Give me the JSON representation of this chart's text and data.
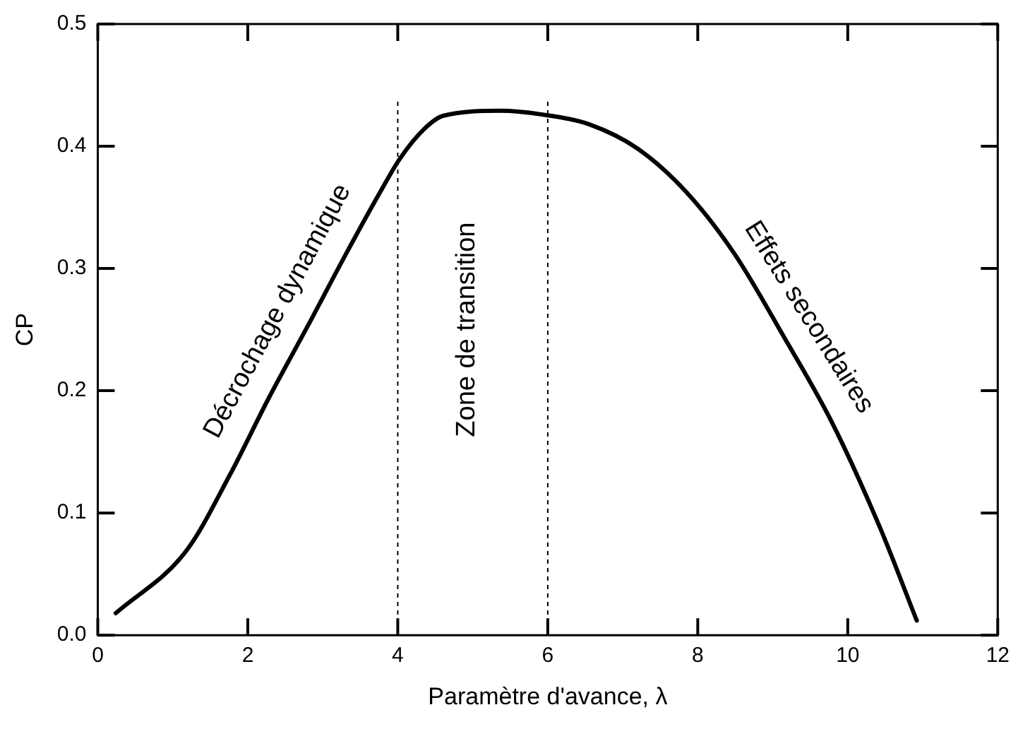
{
  "chart_data": {
    "type": "line",
    "xlabel": "Paramètre d'avance, λ",
    "ylabel": "CP",
    "series": [
      {
        "color": "#000000",
        "x": [
          0.24,
          1.18,
          1.76,
          2.28,
          2.8,
          3.31,
          3.77,
          4.03,
          4.35,
          4.61,
          5.38,
          6.03,
          6.55,
          7.2,
          7.84,
          8.49,
          9.14,
          9.79,
          10.43,
          10.92
        ],
        "values": [
          0.018,
          0.069,
          0.131,
          0.194,
          0.253,
          0.312,
          0.363,
          0.39,
          0.414,
          0.425,
          0.429,
          0.425,
          0.418,
          0.398,
          0.363,
          0.312,
          0.245,
          0.174,
          0.088,
          0.012
        ]
      }
    ],
    "xlim": [
      0,
      12
    ],
    "xticks": [
      0,
      2,
      4,
      6,
      8,
      10,
      12
    ],
    "ylim": [
      0,
      0.5
    ],
    "yticks": [
      {
        "value": 0,
        "label": "0.0"
      },
      0.1,
      0.2,
      0.3,
      0.4,
      0.5
    ],
    "ref_lines": [
      {
        "axis": "x",
        "value": 4,
        "color": "#000000",
        "line_style": "dashed"
      },
      {
        "axis": "x",
        "value": 6,
        "color": "#000000",
        "line_style": "dashed"
      }
    ],
    "annotations": [
      "Décrochage dynamique",
      "Zone de transition",
      "Effets secondaires"
    ],
    "grid": false,
    "legend": false,
    "marker": "none",
    "line_style": "solid"
  }
}
